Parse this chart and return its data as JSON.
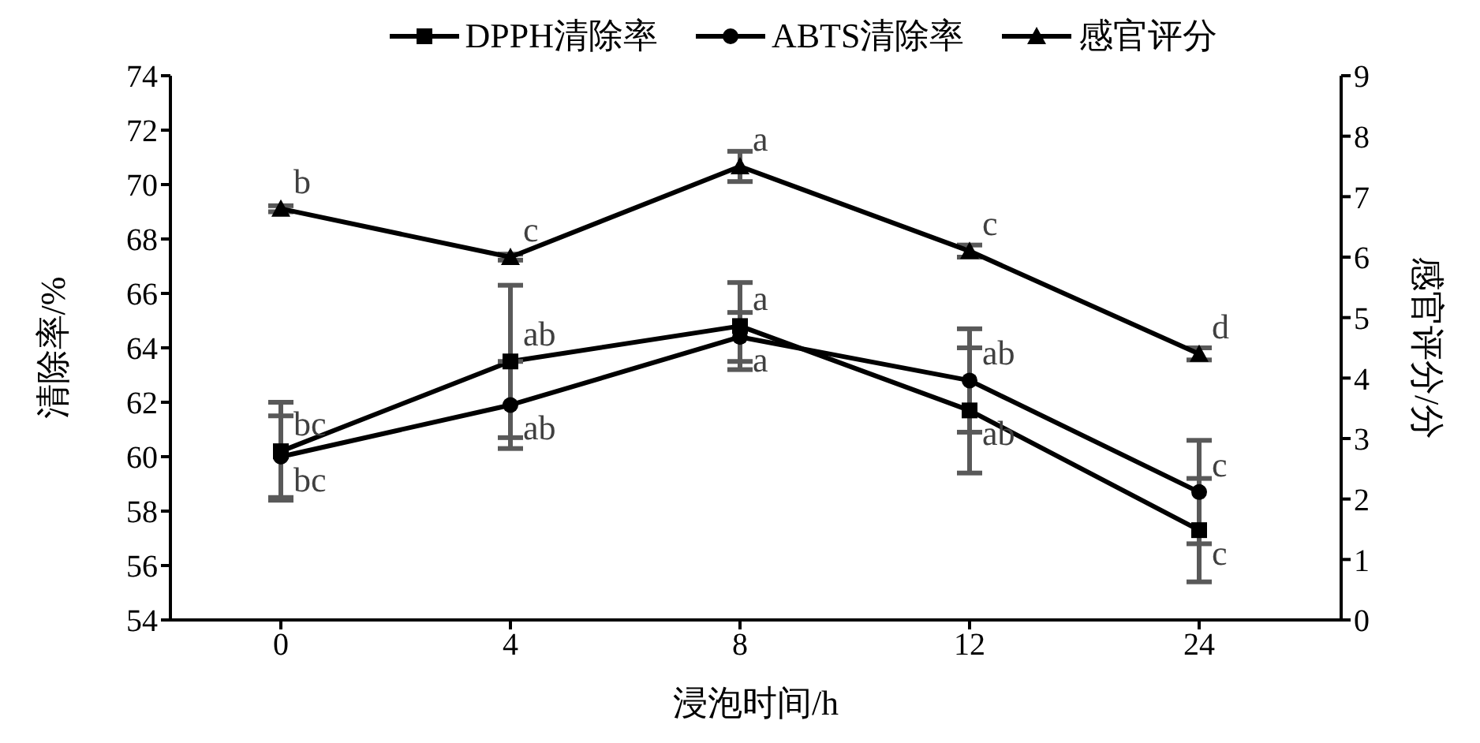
{
  "chart_data": {
    "type": "line",
    "xlabel": "浸泡时间/h",
    "ylabel": "清除率/%",
    "y2label": "感官评分/分",
    "categories": [
      "0",
      "4",
      "8",
      "12",
      "24"
    ],
    "series": [
      {
        "name": "DPPH清除率",
        "color": "#000000",
        "marker": "square",
        "values": [
          60.2,
          63.5,
          64.8,
          61.7,
          57.3
        ],
        "errors": [
          1.8,
          2.8,
          1.6,
          2.3,
          1.9
        ]
      },
      {
        "name": "ABTS清除率",
        "color": "#000000",
        "marker": "circle",
        "values": [
          60.0,
          61.9,
          64.4,
          62.8,
          58.7
        ],
        "errors": [
          1.5,
          1.6,
          0.9,
          1.9,
          1.9
        ]
      },
      {
        "name": "感官评分",
        "color": "#000000",
        "marker": "triangle",
        "axis": "y2",
        "values": [
          6.8,
          6.0,
          7.5,
          6.1,
          4.4
        ],
        "errors": [
          0.05,
          0.05,
          0.25,
          0.1,
          0.1
        ]
      }
    ],
    "ylim": [
      54,
      74
    ],
    "yticks": [
      54,
      56,
      58,
      60,
      62,
      64,
      66,
      68,
      70,
      72,
      74
    ],
    "y2lim": [
      0,
      9
    ],
    "y2ticks": [
      0,
      1,
      2,
      3,
      4,
      5,
      6,
      7,
      8,
      9
    ],
    "grid": false,
    "legend": "top",
    "line_style": "solid",
    "annotations": [
      {
        "text": "bc",
        "x": "0",
        "y": 60.2
      },
      {
        "text": "bc",
        "x": "0",
        "y": 60.0
      },
      {
        "text": "ab",
        "x": "4",
        "y": 63.5
      },
      {
        "text": "ab",
        "x": "4",
        "y": 61.9
      },
      {
        "text": "a",
        "x": "8",
        "y": 64.8
      },
      {
        "text": "a",
        "x": "8",
        "y": 64.4
      },
      {
        "text": "ab",
        "x": "12",
        "y": 62.8
      },
      {
        "text": "ab",
        "x": "12",
        "y": 61.7
      },
      {
        "text": "c",
        "x": "24",
        "y": 58.7
      },
      {
        "text": "c",
        "x": "24",
        "y": 57.3
      },
      "b",
      "c",
      "a",
      "c",
      "d"
    ]
  }
}
